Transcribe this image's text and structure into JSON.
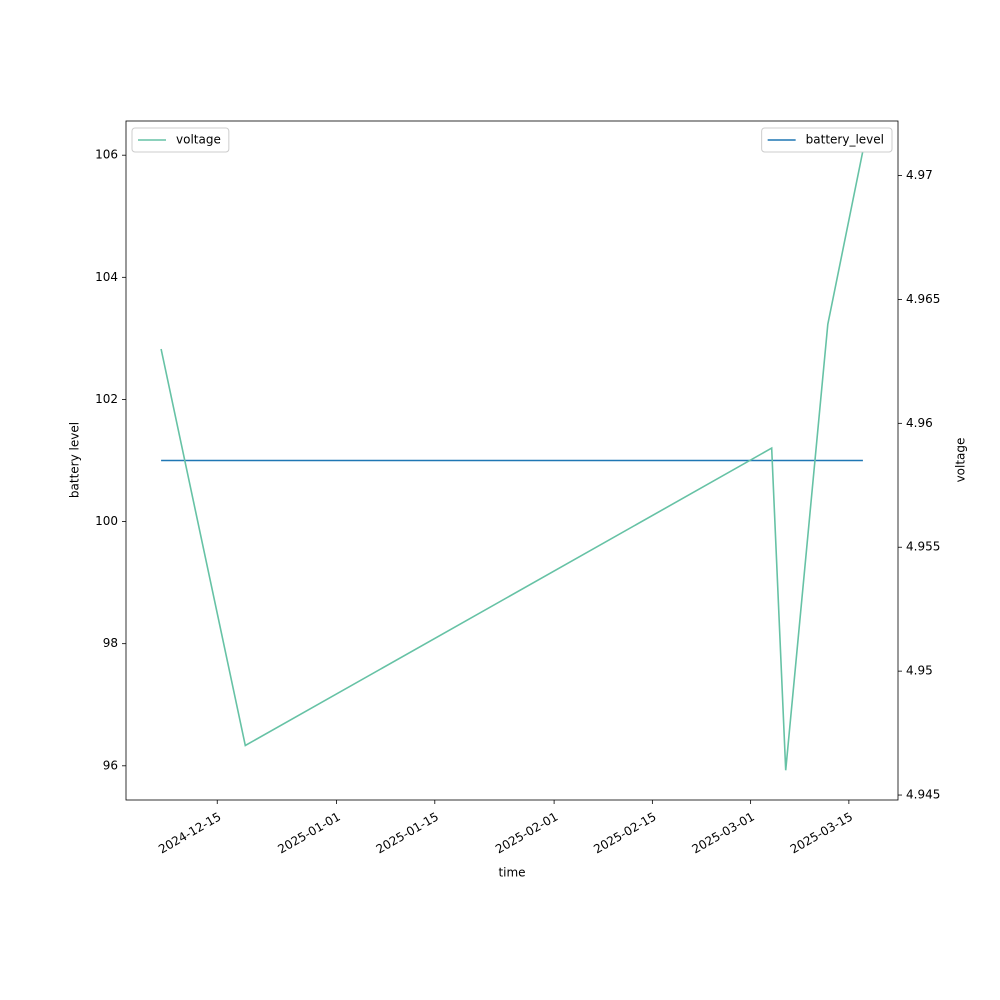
{
  "chart_data": {
    "type": "line",
    "x": [
      "2024-12-07",
      "2024-12-19",
      "2025-03-04",
      "2025-03-06",
      "2025-03-12",
      "2025-03-17"
    ],
    "xlabel": "time",
    "ylabel": "battery level",
    "y2label": "voltage",
    "xlim": [
      "2024-12-02",
      "2025-03-22"
    ],
    "xticks": [
      "2024-12-15",
      "2025-01-01",
      "2025-01-15",
      "2025-02-01",
      "2025-02-15",
      "2025-03-01",
      "2025-03-15"
    ],
    "ylim": [
      95.44,
      106.56
    ],
    "yticks": [
      96,
      98,
      100,
      102,
      104,
      106
    ],
    "y2lim": [
      4.9448,
      4.9722
    ],
    "y2ticks": [
      4.945,
      4.95,
      4.955,
      4.96,
      4.965,
      4.97
    ],
    "series": [
      {
        "name": "battery_level",
        "color": "#1f77b4",
        "values": [
          101,
          101,
          101,
          101,
          101,
          101
        ],
        "legend_loc": "upper right"
      },
      {
        "name": "voltage",
        "color": "#66c2a5",
        "axis": "y2",
        "values": [
          4.963,
          4.947,
          4.959,
          4.946,
          4.964,
          4.971
        ],
        "legend_loc": "upper left"
      }
    ]
  }
}
